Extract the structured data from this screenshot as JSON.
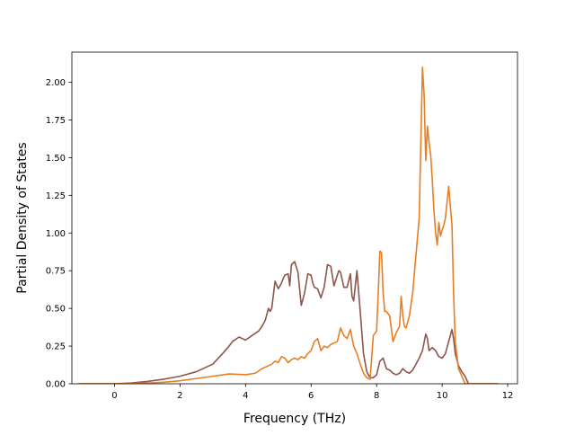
{
  "chart_data": {
    "type": "line",
    "title": "",
    "xlabel": "Frequency (THz)",
    "ylabel": "Partial Density of States",
    "xlim": [
      -1.3,
      12.3
    ],
    "ylim": [
      0,
      2.2
    ],
    "xticks": [
      0,
      2,
      4,
      6,
      8,
      10,
      12
    ],
    "xtick_labels": [
      "0",
      "2",
      "4",
      "6",
      "8",
      "10",
      "12"
    ],
    "yticks": [
      0.0,
      0.25,
      0.5,
      0.75,
      1.0,
      1.25,
      1.5,
      1.75,
      2.0
    ],
    "ytick_labels": [
      "0.00",
      "0.25",
      "0.50",
      "0.75",
      "1.00",
      "1.25",
      "1.50",
      "1.75",
      "2.00"
    ],
    "grid": false,
    "legend": "none",
    "series": [
      {
        "color": "#8c564b",
        "x": [
          -1.1,
          0.0,
          0.5,
          1.0,
          1.5,
          2.0,
          2.5,
          3.0,
          3.3,
          3.5,
          3.6,
          3.8,
          3.9,
          4.0,
          4.2,
          4.4,
          4.5,
          4.6,
          4.7,
          4.75,
          4.8,
          4.9,
          5.0,
          5.1,
          5.15,
          5.2,
          5.3,
          5.35,
          5.4,
          5.5,
          5.6,
          5.7,
          5.8,
          5.9,
          6.0,
          6.05,
          6.1,
          6.2,
          6.3,
          6.4,
          6.5,
          6.6,
          6.7,
          6.8,
          6.85,
          6.9,
          7.0,
          7.1,
          7.2,
          7.25,
          7.3,
          7.35,
          7.4,
          7.5,
          7.6,
          7.7,
          7.8,
          7.9,
          8.0,
          8.1,
          8.2,
          8.3,
          8.4,
          8.5,
          8.6,
          8.7,
          8.8,
          8.9,
          9.0,
          9.1,
          9.2,
          9.3,
          9.4,
          9.5,
          9.55,
          9.6,
          9.7,
          9.8,
          9.9,
          10.0,
          10.1,
          10.2,
          10.3,
          10.35,
          10.4,
          10.5,
          10.6,
          10.7,
          10.8,
          11.0,
          11.7
        ],
        "y": [
          0.0,
          0.0,
          0.005,
          0.015,
          0.03,
          0.05,
          0.08,
          0.13,
          0.2,
          0.25,
          0.28,
          0.31,
          0.3,
          0.29,
          0.32,
          0.35,
          0.38,
          0.42,
          0.5,
          0.48,
          0.5,
          0.68,
          0.63,
          0.67,
          0.7,
          0.72,
          0.73,
          0.65,
          0.79,
          0.81,
          0.74,
          0.52,
          0.6,
          0.73,
          0.72,
          0.67,
          0.64,
          0.63,
          0.57,
          0.64,
          0.79,
          0.78,
          0.65,
          0.72,
          0.75,
          0.74,
          0.64,
          0.64,
          0.73,
          0.58,
          0.55,
          0.65,
          0.75,
          0.48,
          0.2,
          0.08,
          0.04,
          0.04,
          0.06,
          0.15,
          0.17,
          0.1,
          0.09,
          0.07,
          0.06,
          0.07,
          0.1,
          0.08,
          0.07,
          0.09,
          0.13,
          0.17,
          0.22,
          0.33,
          0.3,
          0.22,
          0.24,
          0.22,
          0.18,
          0.17,
          0.2,
          0.28,
          0.36,
          0.3,
          0.2,
          0.12,
          0.08,
          0.05,
          0.0,
          0.0,
          0.0
        ]
      },
      {
        "color": "#e87e24",
        "x": [
          -1.1,
          0.0,
          0.5,
          1.0,
          1.5,
          2.0,
          2.5,
          3.0,
          3.5,
          4.0,
          4.3,
          4.5,
          4.6,
          4.8,
          4.9,
          5.0,
          5.1,
          5.2,
          5.3,
          5.4,
          5.5,
          5.6,
          5.7,
          5.8,
          5.9,
          6.0,
          6.1,
          6.2,
          6.3,
          6.4,
          6.5,
          6.6,
          6.7,
          6.8,
          6.9,
          7.0,
          7.1,
          7.2,
          7.3,
          7.4,
          7.5,
          7.6,
          7.7,
          7.8,
          7.9,
          8.0,
          8.05,
          8.1,
          8.15,
          8.2,
          8.25,
          8.3,
          8.4,
          8.5,
          8.6,
          8.7,
          8.75,
          8.8,
          8.85,
          8.9,
          9.0,
          9.1,
          9.2,
          9.3,
          9.4,
          9.45,
          9.5,
          9.55,
          9.6,
          9.65,
          9.7,
          9.75,
          9.8,
          9.85,
          9.9,
          9.95,
          10.0,
          10.05,
          10.1,
          10.2,
          10.3,
          10.35,
          10.4,
          10.5,
          10.6,
          10.7,
          10.8,
          11.0,
          11.7
        ],
        "y": [
          0.0,
          0.0,
          0.002,
          0.005,
          0.01,
          0.02,
          0.035,
          0.05,
          0.065,
          0.06,
          0.07,
          0.1,
          0.11,
          0.13,
          0.15,
          0.14,
          0.18,
          0.17,
          0.14,
          0.16,
          0.17,
          0.16,
          0.18,
          0.17,
          0.2,
          0.22,
          0.28,
          0.3,
          0.22,
          0.25,
          0.24,
          0.26,
          0.27,
          0.28,
          0.37,
          0.32,
          0.3,
          0.36,
          0.25,
          0.2,
          0.13,
          0.07,
          0.04,
          0.03,
          0.32,
          0.35,
          0.6,
          0.88,
          0.87,
          0.6,
          0.48,
          0.48,
          0.45,
          0.28,
          0.34,
          0.38,
          0.58,
          0.45,
          0.38,
          0.37,
          0.45,
          0.6,
          0.85,
          1.1,
          2.1,
          1.92,
          1.48,
          1.71,
          1.6,
          1.52,
          1.35,
          1.15,
          1.0,
          0.92,
          1.07,
          0.98,
          1.02,
          1.05,
          1.1,
          1.31,
          1.05,
          0.6,
          0.28,
          0.1,
          0.05,
          0.0,
          0.0,
          0.0,
          0.0
        ]
      }
    ]
  }
}
